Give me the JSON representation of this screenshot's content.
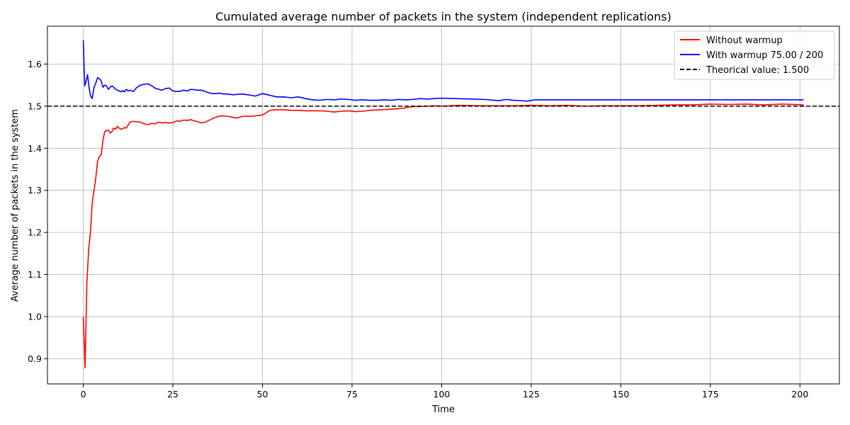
{
  "chart_data": {
    "type": "line",
    "title": "Cumulated average number of packets in the system (independent replications)",
    "xlabel": "Time",
    "ylabel": "Average number of packets in the system",
    "xlim": [
      -10,
      211
    ],
    "ylim": [
      0.84,
      1.69
    ],
    "xticks": [
      0,
      25,
      50,
      75,
      100,
      125,
      150,
      175,
      200
    ],
    "yticks": [
      0.9,
      1.0,
      1.1,
      1.2,
      1.3,
      1.4,
      1.5,
      1.6
    ],
    "ytick_labels": [
      "0.9",
      "1.0",
      "1.1",
      "1.2",
      "1.3",
      "1.4",
      "1.5",
      "1.6"
    ],
    "grid": true,
    "legend_position": "top-right",
    "series": [
      {
        "name": "Without warmup",
        "color": "#ff0000",
        "style": "solid",
        "x": [
          0,
          0.5,
          1,
          1.5,
          2,
          2.5,
          3,
          3.5,
          4,
          4.5,
          5,
          5.5,
          6,
          6.5,
          7,
          7.5,
          8,
          8.5,
          9,
          9.5,
          10,
          10.5,
          11,
          11.5,
          12,
          13,
          14,
          15,
          16,
          17,
          18,
          19,
          20,
          21,
          22,
          23,
          24,
          25,
          26,
          27,
          28,
          29,
          30,
          31,
          32,
          33,
          34,
          35,
          36,
          37,
          38,
          39,
          40,
          41,
          42,
          43,
          44,
          45,
          46,
          47,
          48,
          49,
          50,
          51,
          52,
          53,
          54,
          55,
          56,
          57,
          58,
          60,
          62,
          64,
          66,
          68,
          70,
          72,
          74,
          76,
          78,
          80,
          82,
          84,
          86,
          88,
          90,
          92,
          94,
          96,
          98,
          100,
          105,
          110,
          115,
          120,
          125,
          130,
          135,
          140,
          145,
          150,
          155,
          160,
          165,
          170,
          175,
          180,
          185,
          190,
          195,
          201
        ],
        "y": [
          1.0,
          0.878,
          1.08,
          1.16,
          1.2,
          1.27,
          1.3,
          1.33,
          1.37,
          1.38,
          1.385,
          1.42,
          1.44,
          1.442,
          1.443,
          1.436,
          1.44,
          1.448,
          1.445,
          1.452,
          1.448,
          1.445,
          1.447,
          1.449,
          1.448,
          1.462,
          1.464,
          1.463,
          1.462,
          1.458,
          1.456,
          1.459,
          1.458,
          1.462,
          1.46,
          1.461,
          1.46,
          1.461,
          1.465,
          1.464,
          1.467,
          1.466,
          1.468,
          1.465,
          1.463,
          1.46,
          1.462,
          1.466,
          1.47,
          1.474,
          1.476,
          1.477,
          1.476,
          1.475,
          1.473,
          1.472,
          1.475,
          1.476,
          1.476,
          1.476,
          1.477,
          1.478,
          1.479,
          1.484,
          1.49,
          1.491,
          1.491,
          1.492,
          1.491,
          1.491,
          1.49,
          1.49,
          1.489,
          1.489,
          1.489,
          1.488,
          1.486,
          1.488,
          1.489,
          1.487,
          1.488,
          1.49,
          1.491,
          1.492,
          1.493,
          1.494,
          1.496,
          1.499,
          1.499,
          1.5,
          1.501,
          1.5,
          1.502,
          1.501,
          1.501,
          1.501,
          1.502,
          1.501,
          1.502,
          1.5,
          1.501,
          1.501,
          1.501,
          1.502,
          1.503,
          1.503,
          1.505,
          1.504,
          1.505,
          1.503,
          1.505,
          1.503
        ]
      },
      {
        "name": "With warmup 75.00 / 200",
        "color": "#0000ff",
        "style": "solid",
        "x": [
          0,
          0.4,
          0.8,
          1.2,
          1.6,
          2,
          2.5,
          3,
          3.5,
          4,
          4.5,
          5,
          5.5,
          6,
          6.5,
          7,
          7.5,
          8,
          8.5,
          9,
          9.5,
          10,
          10.5,
          11,
          11.5,
          12,
          12.5,
          13,
          14,
          15,
          16,
          17,
          18,
          19,
          20,
          21,
          22,
          23,
          24,
          25,
          26,
          27,
          28,
          29,
          30,
          31,
          32,
          33,
          34,
          35,
          36,
          37,
          38,
          39,
          40,
          42,
          44,
          46,
          48,
          50,
          52,
          54,
          56,
          58,
          60,
          62,
          64,
          66,
          68,
          70,
          72,
          74,
          76,
          78,
          80,
          82,
          84,
          86,
          88,
          90,
          92,
          94,
          96,
          98,
          100,
          104,
          108,
          112,
          116,
          118,
          120,
          124,
          126,
          130,
          140,
          150,
          160,
          170,
          180,
          190,
          201
        ],
        "y": [
          1.657,
          1.548,
          1.56,
          1.575,
          1.545,
          1.525,
          1.518,
          1.545,
          1.555,
          1.568,
          1.565,
          1.56,
          1.545,
          1.55,
          1.548,
          1.54,
          1.545,
          1.548,
          1.545,
          1.54,
          1.538,
          1.536,
          1.534,
          1.537,
          1.534,
          1.54,
          1.536,
          1.538,
          1.535,
          1.545,
          1.55,
          1.552,
          1.553,
          1.549,
          1.543,
          1.54,
          1.538,
          1.542,
          1.543,
          1.536,
          1.535,
          1.535,
          1.538,
          1.536,
          1.54,
          1.539,
          1.538,
          1.538,
          1.535,
          1.532,
          1.53,
          1.53,
          1.531,
          1.529,
          1.529,
          1.527,
          1.529,
          1.527,
          1.524,
          1.53,
          1.526,
          1.522,
          1.522,
          1.52,
          1.522,
          1.518,
          1.515,
          1.514,
          1.516,
          1.515,
          1.517,
          1.516,
          1.514,
          1.515,
          1.514,
          1.514,
          1.515,
          1.514,
          1.516,
          1.515,
          1.516,
          1.518,
          1.517,
          1.518,
          1.519,
          1.518,
          1.517,
          1.516,
          1.513,
          1.516,
          1.514,
          1.512,
          1.515,
          1.515,
          1.515,
          1.515,
          1.515,
          1.515,
          1.515,
          1.515,
          1.515
        ]
      },
      {
        "name": "Theorical value: 1.500",
        "color": "#000000",
        "style": "dashed",
        "x": [
          -10,
          211
        ],
        "y": [
          1.5,
          1.5
        ]
      }
    ]
  }
}
